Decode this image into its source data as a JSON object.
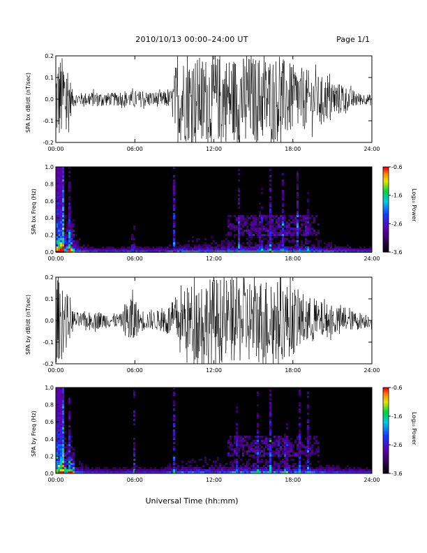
{
  "header": {
    "title": "2010/10/13  00:00–24:00 UT",
    "page": "Page 1/1"
  },
  "chart_data": [
    {
      "type": "line",
      "title": "",
      "xlabel": "",
      "ylabel": "SPA bx dB/dt (nT/sec)",
      "x_ticks": [
        "00:00",
        "06:00",
        "12:00",
        "18:00",
        "24:00"
      ],
      "y_ticks": [
        "-0.2",
        "-0.1",
        "0.0",
        "0.1",
        "0.2"
      ],
      "xlim_hours": [
        0,
        24
      ],
      "ylim": [
        -0.2,
        0.2
      ],
      "series": [
        {
          "x": [
            0,
            0.3,
            0.6,
            0.9,
            1.2,
            1.5,
            2,
            3,
            4,
            5,
            6,
            7,
            8,
            8.8,
            9.2,
            10,
            11,
            12,
            13,
            14,
            15,
            16,
            17,
            18,
            19,
            20,
            21,
            22,
            23,
            24
          ],
          "amplitude": [
            0.2,
            0.2,
            0.2,
            0.2,
            0.05,
            0.03,
            0.03,
            0.035,
            0.03,
            0.03,
            0.04,
            0.035,
            0.035,
            0.04,
            0.2,
            0.2,
            0.2,
            0.2,
            0.2,
            0.2,
            0.2,
            0.2,
            0.2,
            0.16,
            0.14,
            0.11,
            0.09,
            0.06,
            0.03,
            0.02
          ]
        }
      ]
    },
    {
      "type": "heatmap",
      "title": "",
      "xlabel": "",
      "ylabel": "SPA bx Freq (Hz)",
      "x_ticks": [
        "00:00",
        "06:00",
        "12:00",
        "18:00",
        "24:00"
      ],
      "y_ticks": [
        "0.0",
        "0.2",
        "0.4",
        "0.6",
        "0.8",
        "1.0"
      ],
      "xlim_hours": [
        0,
        24
      ],
      "ylim": [
        0,
        1.0
      ],
      "colorbar": {
        "label": "Log₁₀ Power",
        "ticks": [
          "-0.6",
          "-1.6",
          "-2.6",
          "-3.6"
        ],
        "range": [
          -3.6,
          -0.6
        ]
      },
      "activity_hours": [
        0,
        1,
        2,
        3,
        4,
        5,
        6,
        7,
        8,
        9,
        10,
        11,
        12,
        13,
        14,
        15,
        16,
        17,
        18,
        19,
        20,
        21,
        22,
        23,
        24
      ],
      "activity_level": [
        0.9,
        0.8,
        0.35,
        0.25,
        0.2,
        0.25,
        0.3,
        0.2,
        0.25,
        0.45,
        0.5,
        0.5,
        0.5,
        0.55,
        0.6,
        0.65,
        0.7,
        0.7,
        0.65,
        0.55,
        0.45,
        0.35,
        0.3,
        0.25,
        0.2
      ],
      "bright_bursts_hours": [
        0.5,
        1.0,
        5.8,
        8.9,
        13.8,
        15.5,
        16.2,
        17.2,
        18.3,
        19.0
      ]
    },
    {
      "type": "line",
      "title": "",
      "xlabel": "",
      "ylabel": "SPA by dB/dt (nT/sec)",
      "x_ticks": [
        "00:00",
        "06:00",
        "12:00",
        "18:00",
        "24:00"
      ],
      "y_ticks": [
        "-0.2",
        "-0.1",
        "0.0",
        "0.1",
        "0.2"
      ],
      "xlim_hours": [
        0,
        24
      ],
      "ylim": [
        -0.2,
        0.2
      ],
      "series": [
        {
          "x": [
            0,
            0.3,
            0.6,
            0.9,
            1.2,
            1.5,
            2,
            3,
            4,
            5,
            5.8,
            6.2,
            7,
            8,
            9,
            10,
            11,
            12,
            13,
            14,
            15,
            16,
            17,
            18,
            19,
            20,
            21,
            22,
            23,
            24
          ],
          "amplitude": [
            0.2,
            0.18,
            0.15,
            0.12,
            0.06,
            0.04,
            0.035,
            0.04,
            0.035,
            0.03,
            0.15,
            0.06,
            0.04,
            0.05,
            0.09,
            0.16,
            0.2,
            0.2,
            0.2,
            0.2,
            0.2,
            0.2,
            0.19,
            0.16,
            0.12,
            0.09,
            0.07,
            0.05,
            0.04,
            0.03
          ]
        }
      ]
    },
    {
      "type": "heatmap",
      "title": "",
      "xlabel": "Universal Time (hh:mm)",
      "ylabel": "SPA by Freq (Hz)",
      "x_ticks": [
        "00:00",
        "06:00",
        "12:00",
        "18:00",
        "24:00"
      ],
      "y_ticks": [
        "0.0",
        "0.2",
        "0.4",
        "0.6",
        "0.8",
        "1.0"
      ],
      "xlim_hours": [
        0,
        24
      ],
      "ylim": [
        0,
        1.0
      ],
      "colorbar": {
        "label": "Log₁₀ Power",
        "ticks": [
          "-0.6",
          "-1.6",
          "-2.6",
          "-3.6"
        ],
        "range": [
          -3.6,
          -0.6
        ]
      },
      "activity_hours": [
        0,
        1,
        2,
        3,
        4,
        5,
        6,
        7,
        8,
        9,
        10,
        11,
        12,
        13,
        14,
        15,
        16,
        17,
        18,
        19,
        20,
        21,
        22,
        23,
        24
      ],
      "activity_level": [
        0.95,
        0.85,
        0.35,
        0.25,
        0.2,
        0.25,
        0.35,
        0.2,
        0.25,
        0.45,
        0.5,
        0.55,
        0.55,
        0.55,
        0.6,
        0.65,
        0.7,
        0.7,
        0.65,
        0.55,
        0.45,
        0.35,
        0.3,
        0.25,
        0.2
      ],
      "bright_bursts_hours": [
        0.5,
        1.0,
        5.9,
        8.9,
        13.6,
        15.3,
        16.2,
        17.4,
        18.4,
        19.1
      ]
    }
  ]
}
